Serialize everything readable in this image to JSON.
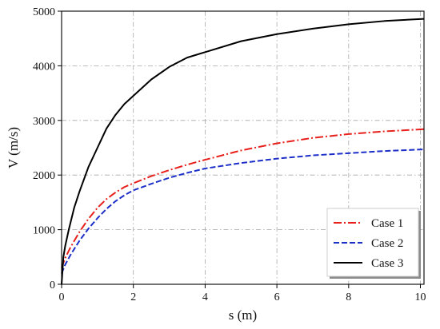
{
  "chart_data": {
    "type": "line",
    "xlabel": "s (m)",
    "ylabel": "V (m/s)",
    "xlim": [
      0,
      10.1
    ],
    "ylim": [
      0,
      5000
    ],
    "xticks": [
      0,
      2,
      4,
      6,
      8,
      10
    ],
    "yticks": [
      0,
      1000,
      2000,
      3000,
      4000,
      5000
    ],
    "grid": true,
    "legend_position": "bottom-right",
    "series": [
      {
        "name": "Case 1",
        "color": "#e8201c",
        "dash": "dashdot",
        "x": [
          0,
          0.1,
          0.25,
          0.5,
          0.75,
          1.0,
          1.25,
          1.5,
          1.75,
          2.0,
          2.5,
          3.0,
          3.5,
          4.0,
          5.0,
          6.0,
          7.0,
          8.0,
          9.0,
          10.1
        ],
        "y": [
          300,
          480,
          680,
          960,
          1200,
          1400,
          1560,
          1680,
          1780,
          1850,
          1980,
          2090,
          2190,
          2280,
          2450,
          2580,
          2680,
          2750,
          2800,
          2840
        ]
      },
      {
        "name": "Case 2",
        "color": "#1d2fc9",
        "dash": "dashed",
        "x": [
          0,
          0.1,
          0.25,
          0.5,
          0.75,
          1.0,
          1.25,
          1.5,
          1.75,
          2.0,
          2.5,
          3.0,
          3.5,
          4.0,
          5.0,
          6.0,
          7.0,
          8.0,
          9.0,
          10.1
        ],
        "y": [
          200,
          360,
          540,
          800,
          1020,
          1210,
          1380,
          1520,
          1630,
          1720,
          1840,
          1950,
          2040,
          2120,
          2220,
          2300,
          2360,
          2400,
          2440,
          2470
        ]
      },
      {
        "name": "Case 3",
        "color": "#000000",
        "dash": "solid",
        "x": [
          0,
          0.05,
          0.1,
          0.2,
          0.35,
          0.5,
          0.75,
          1.0,
          1.25,
          1.5,
          1.75,
          2.0,
          2.5,
          3.0,
          3.5,
          4.0,
          5.0,
          6.0,
          7.0,
          8.0,
          9.0,
          10.1
        ],
        "y": [
          0,
          500,
          700,
          1000,
          1400,
          1700,
          2150,
          2500,
          2850,
          3100,
          3300,
          3450,
          3750,
          3980,
          4150,
          4250,
          4450,
          4580,
          4680,
          4760,
          4820,
          4860
        ]
      }
    ]
  }
}
